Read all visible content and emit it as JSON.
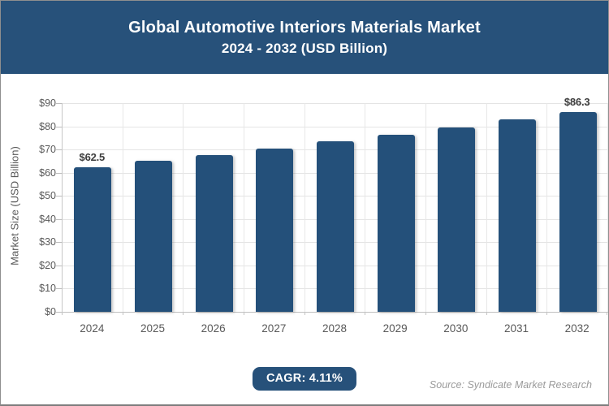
{
  "header": {
    "title": "Global Automotive Interiors Materials Market",
    "subtitle": "2024 - 2032 (USD Billion)"
  },
  "chart_data": {
    "type": "bar",
    "title": "Global Automotive Interiors Materials Market 2024 - 2032 (USD Billion)",
    "categories": [
      "2024",
      "2025",
      "2026",
      "2027",
      "2028",
      "2029",
      "2030",
      "2031",
      "2032"
    ],
    "values": [
      62.5,
      65.1,
      67.7,
      70.5,
      73.4,
      76.4,
      79.6,
      82.9,
      86.3
    ],
    "shown_data_labels": [
      {
        "index": 0,
        "text": "$62.5"
      },
      {
        "index": 8,
        "text": "$86.3"
      }
    ],
    "xlabel": "",
    "ylabel": "Market Size (USD Billion)",
    "ylim": [
      0,
      90
    ],
    "ytick_step": 10,
    "ytick_labels": [
      "$0",
      "$10",
      "$20",
      "$30",
      "$40",
      "$50",
      "$60",
      "$70",
      "$80",
      "$90"
    ],
    "grid": true,
    "legend": "none"
  },
  "footer": {
    "cagr_label": "CAGR: 4.11%",
    "source": "Source: Syndicate Market Research"
  },
  "colors": {
    "banner_bg": "#27517a",
    "bar_fill": "#24507a",
    "badge_bg": "#27517a",
    "grid_line": "#e4e4e4",
    "axis_text": "#595959",
    "value_text": "#3d3d3d",
    "source_text": "#9a9a9a"
  }
}
